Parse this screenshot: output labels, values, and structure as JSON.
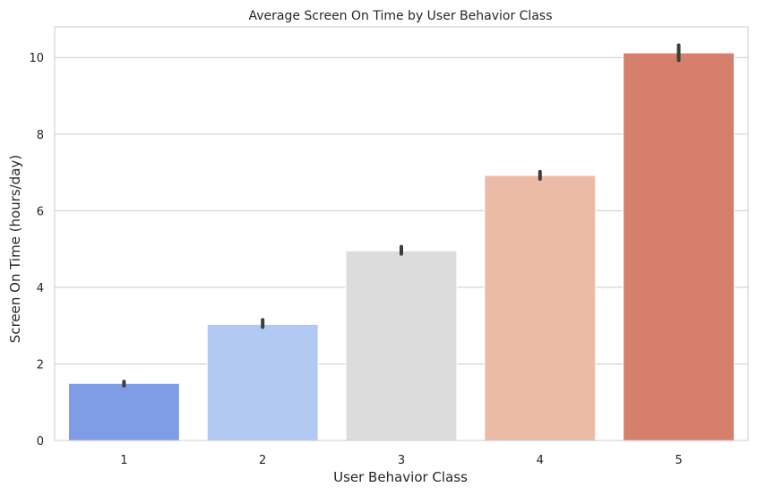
{
  "chart_data": {
    "type": "bar",
    "title": "Average Screen On Time by User Behavior Class",
    "xlabel": "User Behavior Class",
    "ylabel": "Screen On Time (hours/day)",
    "categories": [
      "1",
      "2",
      "3",
      "4",
      "5"
    ],
    "values": [
      1.49,
      3.03,
      4.95,
      6.92,
      10.12
    ],
    "error_bars": [
      [
        1.43,
        1.54
      ],
      [
        2.96,
        3.15
      ],
      [
        4.87,
        5.06
      ],
      [
        6.83,
        7.02
      ],
      [
        9.93,
        10.32
      ]
    ],
    "colors": [
      "#7f9de6",
      "#b2c9f4",
      "#dcdcdc",
      "#ecbba6",
      "#d57f6c"
    ],
    "ylim": [
      0,
      10.8
    ],
    "yticks": [
      0,
      2,
      4,
      6,
      8,
      10
    ],
    "grid": true,
    "legend": "none"
  }
}
